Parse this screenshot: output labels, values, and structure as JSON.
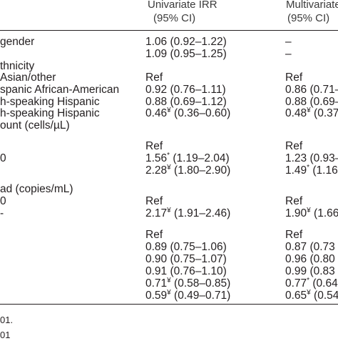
{
  "header": {
    "univariate_title": "Univariate IRR",
    "univariate_ci": "(95% CI)",
    "multivariate_title": "Multivariate",
    "multivariate_ci": "(95% CI)"
  },
  "rows": [
    {
      "label": "gender",
      "uni": "1.06 (0.92–1.22)",
      "multi": "–"
    },
    {
      "label": "",
      "uni": "1.09 (0.95–1.25)",
      "multi": "–"
    },
    {
      "label": "thnicity",
      "uni": "",
      "multi": ""
    },
    {
      "label": "Asian/other",
      "uni": "Ref",
      "multi": "Ref"
    },
    {
      "label": "spanic African-American",
      "uni": "0.92 (0.76–1.11)",
      "multi": "0.86 (0.71–"
    },
    {
      "label": "h-speaking Hispanic",
      "uni": "0.88 (0.69–1.12)",
      "multi": "0.88 (0.69–"
    },
    {
      "label": "h-speaking Hispanic",
      "uni_val": "0.46",
      "uni_sup": "¥",
      "uni_ci": " (0.36–0.60)",
      "multi_val": "0.48",
      "multi_sup": "¥",
      "multi_ci": " (0.37"
    },
    {
      "label": "ount (cells/µL)",
      "uni": "",
      "multi": ""
    },
    {
      "label": "",
      "uni": "Ref",
      "multi": "Ref"
    },
    {
      "label": "0",
      "uni_val": "1.56",
      "uni_sup": "*",
      "uni_ci": " (1.19–2.04)",
      "multi": "1.23 (0.93–"
    },
    {
      "label": "",
      "uni_val": "2.28",
      "uni_sup": "¥",
      "uni_ci": " (1.80–2.90)",
      "multi_val": "1.49",
      "multi_sup": "*",
      "multi_ci": " (1.16"
    },
    {
      "label": "ad (copies/mL)",
      "uni": "",
      "multi": ""
    },
    {
      "label": "0",
      "uni": "Ref",
      "multi": "Ref"
    },
    {
      "label": "-",
      "uni_val": "2.17",
      "uni_sup": "¥",
      "uni_ci": " (1.91–2.46)",
      "multi_val": "1.90",
      "multi_sup": "¥",
      "multi_ci": " (1.66"
    },
    {
      "label": "",
      "uni": "",
      "multi": ""
    },
    {
      "label": "",
      "uni": "Ref",
      "multi": "Ref"
    },
    {
      "label": "",
      "uni": "0.89 (0.75–1.06)",
      "multi": "0.87 (0.73"
    },
    {
      "label": "",
      "uni": "0.90 (0.75–1.07)",
      "multi": "0.96 (0.80"
    },
    {
      "label": "",
      "uni": "0.91 (0.76–1.10)",
      "multi": "0.99 (0.83"
    },
    {
      "label": "",
      "uni_val": "0.71",
      "uni_sup": "¥",
      "uni_ci": " (0.58–0.85)",
      "multi_val": "0.77",
      "multi_sup": "*",
      "multi_ci": " (0.64"
    },
    {
      "label": "",
      "uni_val": "0.59",
      "uni_sup": "¥",
      "uni_ci": " (0.49–0.71)",
      "multi_val": "0.65",
      "multi_sup": "¥",
      "multi_ci": " (0.54"
    }
  ],
  "footnotes": [
    "01.",
    "01"
  ]
}
